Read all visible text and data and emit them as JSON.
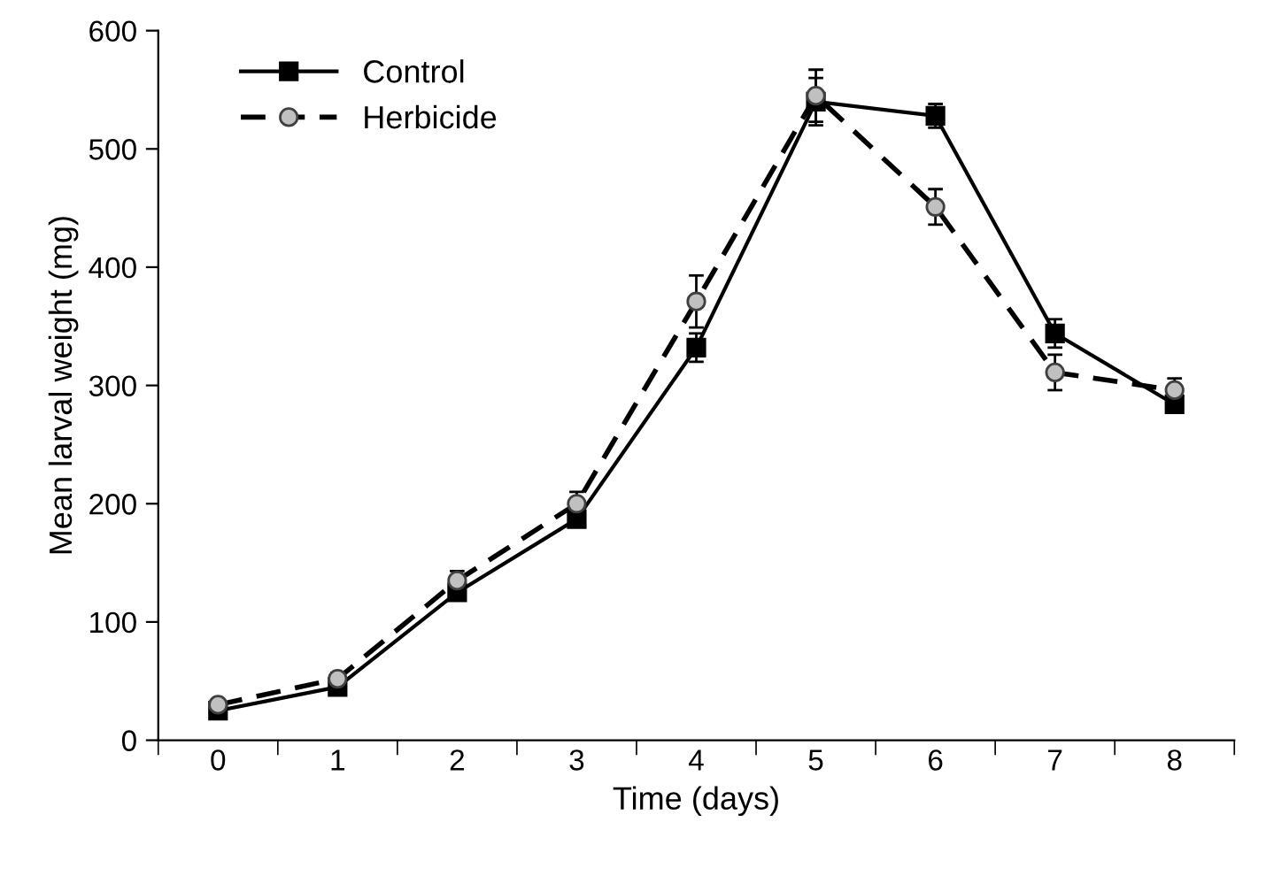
{
  "chart_data": {
    "type": "line",
    "xlabel": "Time (days)",
    "ylabel": "Mean larval weight (mg)",
    "categories": [
      "0",
      "1",
      "2",
      "3",
      "4",
      "5",
      "6",
      "7",
      "8"
    ],
    "series": [
      {
        "name": "Control",
        "color": "#000000",
        "marker": "square",
        "line_style": "solid",
        "values": [
          25,
          45,
          125,
          187,
          332,
          540,
          528,
          344,
          284
        ],
        "errors": [
          4,
          5,
          6,
          6,
          12,
          20,
          10,
          12,
          6
        ]
      },
      {
        "name": "Herbicide",
        "color": "#c0c0c0",
        "marker": "circle",
        "line_style": "dashed",
        "values": [
          30,
          52,
          135,
          200,
          371,
          545,
          451,
          311,
          296
        ],
        "errors": [
          4,
          5,
          8,
          10,
          22,
          22,
          15,
          15,
          10
        ]
      }
    ],
    "ylim": [
      0,
      600
    ],
    "yticks": [
      0,
      100,
      200,
      300,
      400,
      500,
      600
    ],
    "grid": false,
    "legend": "top left"
  }
}
